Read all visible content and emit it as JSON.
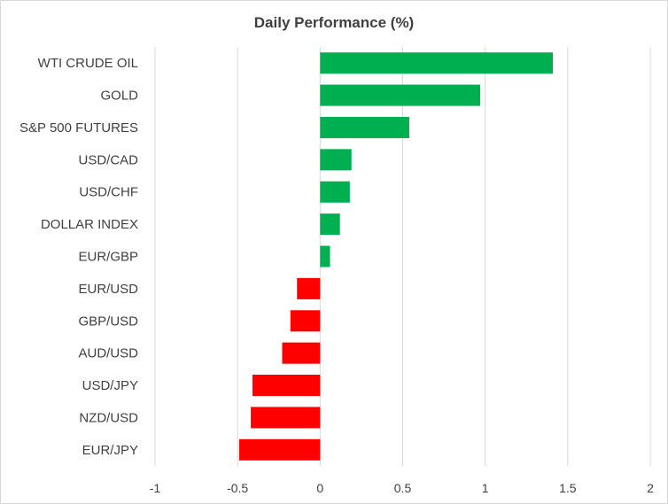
{
  "chart_data": {
    "type": "bar",
    "orientation": "horizontal",
    "title": "Daily Performance (%)",
    "xlabel": "",
    "ylabel": "",
    "xlim": [
      -1,
      2
    ],
    "xticks": [
      -1,
      -0.5,
      0,
      0.5,
      1,
      1.5,
      2
    ],
    "xtick_labels": [
      "-1",
      "-0.5",
      "0",
      "0.5",
      "1",
      "1.5",
      "2"
    ],
    "grid": true,
    "legend": "none",
    "categories": [
      "WTI CRUDE OIL",
      "GOLD",
      "S&P 500 FUTURES",
      "USD/CAD",
      "USD/CHF",
      "DOLLAR INDEX",
      "EUR/GBP",
      "EUR/USD",
      "GBP/USD",
      "AUD/USD",
      "USD/JPY",
      "NZD/USD",
      "EUR/JPY"
    ],
    "values": [
      1.41,
      0.97,
      0.54,
      0.19,
      0.18,
      0.12,
      0.06,
      -0.14,
      -0.18,
      -0.23,
      -0.41,
      -0.42,
      -0.49
    ],
    "colors": {
      "positive": "#00b050",
      "negative": "#ff0000",
      "grid": "#d9d9d9",
      "text": "#404040"
    }
  }
}
